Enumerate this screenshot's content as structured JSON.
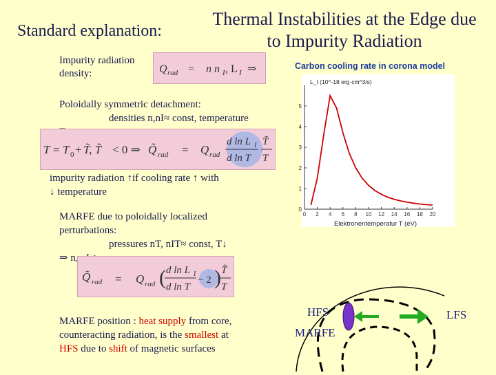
{
  "title_left": "Standard explanation:",
  "title_line1": "Thermal Instabilities at the Edge due",
  "title_line2": "to Impurity Radiation",
  "impurity_label_1": "Impurity radiation",
  "impurity_label_2": "density:",
  "eq1": "Q_rad = n n_I L_I ⇒",
  "chart_data": {
    "type": "line",
    "title": "Carbon cooling rate in corona model",
    "ylabel": "L_I (10^-18 erg·cm^3/s)",
    "xlabel": "Elektronentemperatur T (eV)",
    "xlim": [
      0,
      20
    ],
    "ylim": [
      0,
      6
    ],
    "x_ticks": [
      "0",
      "2",
      "4",
      "6",
      "8",
      "10",
      "12",
      "14",
      "16",
      "18",
      "20"
    ],
    "y_ticks": [
      "0",
      "1",
      "2",
      "3",
      "4",
      "5"
    ],
    "x": [
      1,
      2,
      3,
      4,
      5,
      6,
      7,
      8,
      9,
      10,
      11,
      12,
      13,
      14,
      15,
      16,
      17,
      18,
      19,
      20
    ],
    "values": [
      0.2,
      1.5,
      3.6,
      5.5,
      4.9,
      3.7,
      2.7,
      2.0,
      1.5,
      1.15,
      0.9,
      0.72,
      0.58,
      0.48,
      0.4,
      0.34,
      0.29,
      0.25,
      0.22,
      0.2
    ]
  },
  "poloidal_1": "Poloidally symmetric detachment:",
  "poloidal_2": "densities n,nI≈ const, temperature",
  "poloidal_3": "T ↓:",
  "eq2": "T = T0 + T̃, T̃ < 0 ⇒ Q̃rad = Qrad (d ln LI / d ln T) (T̃ / T)",
  "radiation_1": "impurity radiation ↑if cooling rate ↑ with",
  "radiation_2": "↓ temperature",
  "marfe_1": "MARFE due to poloidally localized",
  "marfe_2": "perturbations:",
  "marfe_3": "pressures nT, nIT≈ const, T↓",
  "marfe_4": "⇒ n, nI ↑",
  "eq3": "Q̃rad = Qrad (d ln LI / d ln T − 2) T̃ / T",
  "pos_1a": "MARFE position : ",
  "pos_1b": "heat supply",
  "pos_1c": " from core,",
  "pos_2": "counteracting radiation,  is the ",
  "pos_2b": "smallest",
  "pos_2c": " at",
  "pos_3a": "HFS",
  "pos_3b": " due to ",
  "pos_3c": "shift",
  "pos_3d": " of magnetic surfaces",
  "hfs_label": "HFS",
  "marfe_label": "MARFE",
  "lfs_label": "LFS",
  "colors": {
    "background": "#ffffcc",
    "box": "#f2ccd9",
    "curve": "#cc0000",
    "arrow": "#22aa22",
    "marfe": "#7733cc"
  }
}
